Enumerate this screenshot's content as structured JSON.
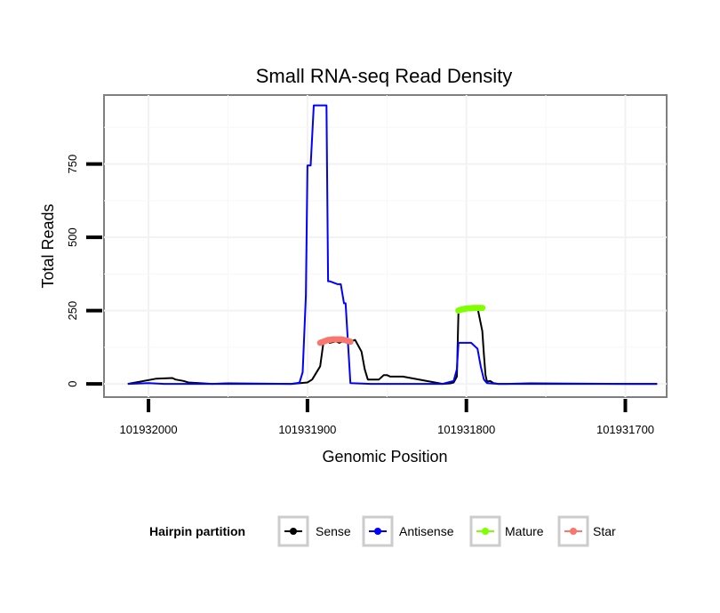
{
  "chart_data": {
    "type": "line",
    "title": "Small RNA-seq Read Density",
    "xlabel": "Genomic Position",
    "ylabel": "Total Reads",
    "xlim": [
      101932028,
      101931674
    ],
    "ylim": [
      -45,
      985
    ],
    "x_reversed": true,
    "xticks": [
      101932000,
      101931900,
      101931800,
      101931700
    ],
    "xtick_labels": [
      "101932000",
      "101931900",
      "101931800",
      "101931700"
    ],
    "yticks": [
      0,
      250,
      500,
      750
    ],
    "ytick_labels": [
      "0",
      "250",
      "500",
      "750"
    ],
    "grid": true,
    "legend": {
      "title": "Hairpin partition",
      "position": "bottom",
      "entries": [
        "Sense",
        "Antisense",
        "Mature",
        "Star"
      ]
    },
    "series": [
      {
        "name": "Sense",
        "color": "#000000",
        "x": [
          101932013,
          101931995,
          101931985,
          101931983,
          101931978,
          101931975,
          101931960,
          101931950,
          101931910,
          101931900,
          101931897,
          101931892,
          101931890,
          101931888,
          101931886,
          101931882,
          101931880,
          101931878,
          101931875,
          101931870,
          101931866,
          101931864,
          101931862,
          101931855,
          101931852,
          101931850,
          101931848,
          101931840,
          101931815,
          101931810,
          101931808,
          101931806,
          101931805,
          101931803,
          101931800,
          101931798,
          101931795,
          101931794,
          101931793,
          101931790,
          101931789,
          101931788,
          101931787,
          101931785,
          101931783,
          101931780,
          101931775,
          101931760,
          101931700,
          101931680
        ],
        "y": [
          0,
          18,
          20,
          15,
          10,
          5,
          0,
          2,
          0,
          5,
          15,
          60,
          140,
          150,
          140,
          145,
          140,
          145,
          140,
          150,
          110,
          50,
          15,
          15,
          30,
          30,
          25,
          25,
          0,
          2,
          5,
          25,
          250,
          260,
          255,
          260,
          255,
          260,
          260,
          180,
          100,
          30,
          8,
          10,
          3,
          0,
          0,
          2,
          0,
          0
        ]
      },
      {
        "name": "Antisense",
        "color": "#0000ff",
        "x": [
          101932013,
          101932000,
          101931990,
          101931980,
          101931920,
          101931910,
          101931905,
          101931903,
          101931901,
          101931900,
          101931899,
          101931898,
          101931896,
          101931894,
          101931893,
          101931891,
          101931888,
          101931887,
          101931886,
          101931881,
          101931880,
          101931879,
          101931877,
          101931876,
          101931873,
          101931860,
          101931815,
          101931808,
          101931806,
          101931805,
          101931800,
          101931797,
          101931795,
          101931793,
          101931791,
          101931789,
          101931787,
          101931780,
          101931680
        ],
        "y": [
          0,
          3,
          0,
          0,
          0,
          0,
          4,
          40,
          300,
          745,
          745,
          745,
          950,
          950,
          950,
          950,
          950,
          350,
          350,
          340,
          340,
          340,
          275,
          275,
          3,
          0,
          0,
          10,
          50,
          140,
          140,
          140,
          130,
          120,
          60,
          15,
          3,
          0,
          0
        ]
      },
      {
        "name": "Mature",
        "color": "#7fff00",
        "x": [
          101931805,
          101931804,
          101931803,
          101931802,
          101931801,
          101931800,
          101931799,
          101931798,
          101931797,
          101931796,
          101931795,
          101931794,
          101931793,
          101931792,
          101931791,
          101931790
        ],
        "y": [
          250,
          252,
          254,
          255,
          256,
          257,
          258,
          258,
          258,
          259,
          259,
          259,
          259,
          259,
          259,
          259
        ]
      },
      {
        "name": "Star",
        "color": "#f8766d",
        "x": [
          101931892,
          101931891,
          101931890,
          101931889,
          101931888,
          101931887,
          101931886,
          101931885,
          101931884,
          101931883,
          101931882,
          101931881,
          101931880,
          101931879,
          101931878,
          101931877,
          101931876,
          101931875,
          101931874,
          101931873
        ],
        "y": [
          140,
          142,
          144,
          146,
          148,
          150,
          150,
          151,
          152,
          152,
          152,
          152,
          152,
          152,
          151,
          150,
          149,
          148,
          146,
          144
        ]
      }
    ]
  }
}
